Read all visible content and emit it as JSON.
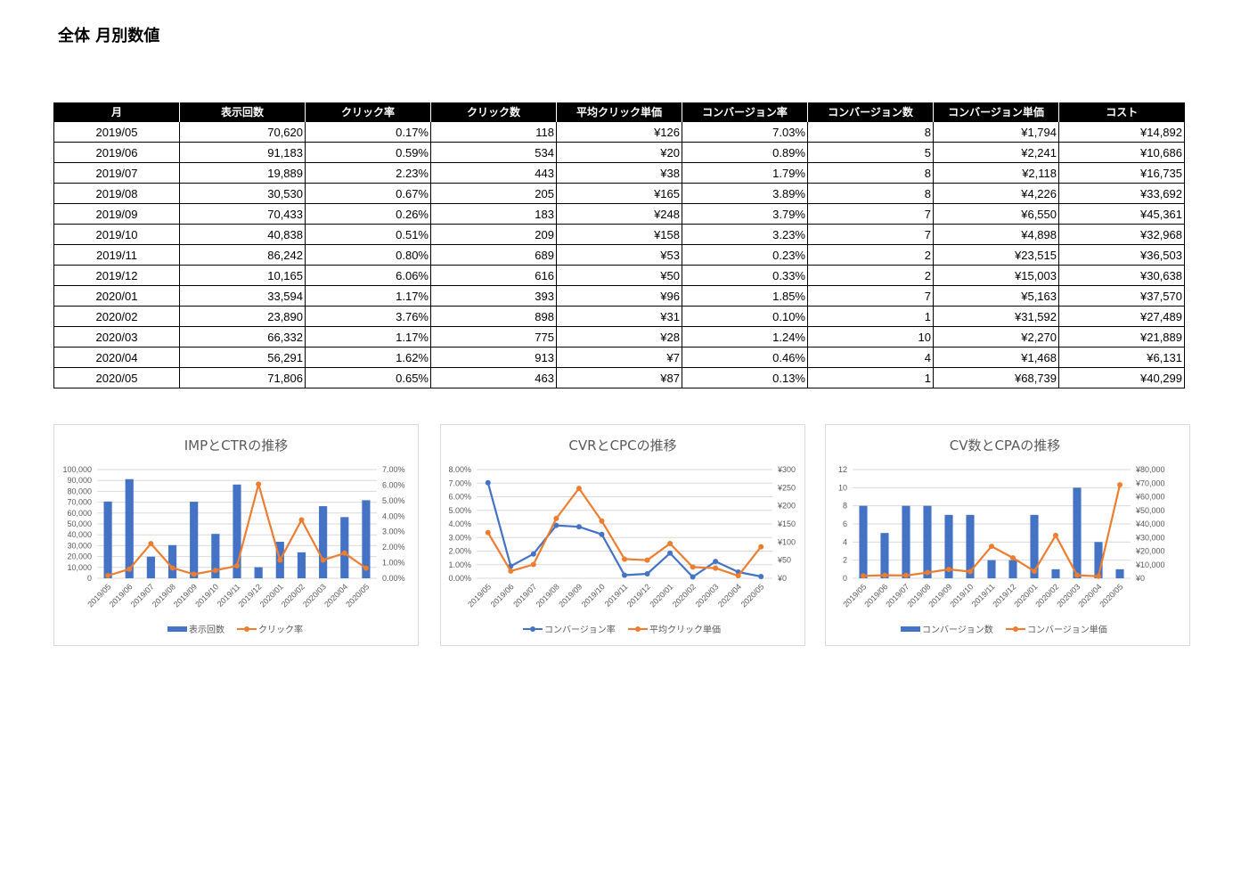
{
  "page_title": "全体 月別数値",
  "table": {
    "headers": [
      "月",
      "表示回数",
      "クリック率",
      "クリック数",
      "平均クリック単価",
      "コンバージョン率",
      "コンバージョン数",
      "コンバージョン単価",
      "コスト"
    ],
    "rows": [
      [
        "2019/05",
        "70,620",
        "0.17%",
        "118",
        "¥126",
        "7.03%",
        "8",
        "¥1,794",
        "¥14,892"
      ],
      [
        "2019/06",
        "91,183",
        "0.59%",
        "534",
        "¥20",
        "0.89%",
        "5",
        "¥2,241",
        "¥10,686"
      ],
      [
        "2019/07",
        "19,889",
        "2.23%",
        "443",
        "¥38",
        "1.79%",
        "8",
        "¥2,118",
        "¥16,735"
      ],
      [
        "2019/08",
        "30,530",
        "0.67%",
        "205",
        "¥165",
        "3.89%",
        "8",
        "¥4,226",
        "¥33,692"
      ],
      [
        "2019/09",
        "70,433",
        "0.26%",
        "183",
        "¥248",
        "3.79%",
        "7",
        "¥6,550",
        "¥45,361"
      ],
      [
        "2019/10",
        "40,838",
        "0.51%",
        "209",
        "¥158",
        "3.23%",
        "7",
        "¥4,898",
        "¥32,968"
      ],
      [
        "2019/11",
        "86,242",
        "0.80%",
        "689",
        "¥53",
        "0.23%",
        "2",
        "¥23,515",
        "¥36,503"
      ],
      [
        "2019/12",
        "10,165",
        "6.06%",
        "616",
        "¥50",
        "0.33%",
        "2",
        "¥15,003",
        "¥30,638"
      ],
      [
        "2020/01",
        "33,594",
        "1.17%",
        "393",
        "¥96",
        "1.85%",
        "7",
        "¥5,163",
        "¥37,570"
      ],
      [
        "2020/02",
        "23,890",
        "3.76%",
        "898",
        "¥31",
        "0.10%",
        "1",
        "¥31,592",
        "¥27,489"
      ],
      [
        "2020/03",
        "66,332",
        "1.17%",
        "775",
        "¥28",
        "1.24%",
        "10",
        "¥2,270",
        "¥21,889"
      ],
      [
        "2020/04",
        "56,291",
        "1.62%",
        "913",
        "¥7",
        "0.46%",
        "4",
        "¥1,468",
        "¥6,131"
      ],
      [
        "2020/05",
        "71,806",
        "0.65%",
        "463",
        "¥87",
        "0.13%",
        "1",
        "¥68,739",
        "¥40,299"
      ]
    ]
  },
  "colors": {
    "bar_blue": "#4472c4",
    "line_orange": "#ed7d31",
    "grid": "#d9d9d9",
    "text": "#595959"
  },
  "chart_data": [
    {
      "type": "bar",
      "title": "IMPとCTRの推移",
      "categories": [
        "2019/05",
        "2019/06",
        "2019/07",
        "2019/08",
        "2019/09",
        "2019/10",
        "2019/11",
        "2019/12",
        "2020/01",
        "2020/02",
        "2020/03",
        "2020/04",
        "2020/05"
      ],
      "left_axis": {
        "kind": "bar",
        "min": 0,
        "max": 100000,
        "step": 10000,
        "format": "comma"
      },
      "right_axis": {
        "kind": "line",
        "min": 0,
        "max": 0.07,
        "step": 0.01,
        "format": "pct"
      },
      "left_series": [
        {
          "name": "表示回数",
          "type": "bar",
          "values": [
            70620,
            91183,
            19889,
            30530,
            70433,
            40838,
            86242,
            10165,
            33594,
            23890,
            66332,
            56291,
            71806
          ]
        }
      ],
      "right_series": [
        {
          "name": "クリック率",
          "type": "line",
          "values": [
            0.0017,
            0.0059,
            0.0223,
            0.0067,
            0.0026,
            0.0051,
            0.008,
            0.0606,
            0.0117,
            0.0376,
            0.0117,
            0.0162,
            0.0065
          ]
        }
      ],
      "legend": "bottom",
      "grid": true
    },
    {
      "type": "line",
      "title": "CVRとCPCの推移",
      "categories": [
        "2019/05",
        "2019/06",
        "2019/07",
        "2019/08",
        "2019/09",
        "2019/10",
        "2019/11",
        "2019/12",
        "2020/01",
        "2020/02",
        "2020/03",
        "2020/04",
        "2020/05"
      ],
      "left_axis": {
        "kind": "line",
        "min": 0,
        "max": 0.08,
        "step": 0.01,
        "format": "pct"
      },
      "right_axis": {
        "kind": "line",
        "min": 0,
        "max": 300,
        "step": 50,
        "format": "yen"
      },
      "left_series": [
        {
          "name": "コンバージョン率",
          "type": "line",
          "values": [
            0.0703,
            0.0089,
            0.0179,
            0.0389,
            0.0379,
            0.0323,
            0.0023,
            0.0033,
            0.0185,
            0.001,
            0.0124,
            0.0046,
            0.0013
          ]
        }
      ],
      "right_series": [
        {
          "name": "平均クリック単価",
          "type": "line",
          "values": [
            126,
            20,
            38,
            165,
            248,
            158,
            53,
            50,
            96,
            31,
            28,
            7,
            87
          ]
        }
      ],
      "legend": "bottom",
      "grid": true
    },
    {
      "type": "bar",
      "title": "CV数とCPAの推移",
      "categories": [
        "2019/05",
        "2019/06",
        "2019/07",
        "2019/08",
        "2019/09",
        "2019/10",
        "2019/11",
        "2019/12",
        "2020/01",
        "2020/02",
        "2020/03",
        "2020/04",
        "2020/05"
      ],
      "left_axis": {
        "kind": "bar",
        "min": 0,
        "max": 12,
        "step": 2,
        "format": "plain"
      },
      "right_axis": {
        "kind": "line",
        "min": 0,
        "max": 80000,
        "step": 10000,
        "format": "yen"
      },
      "left_series": [
        {
          "name": "コンバージョン数",
          "type": "bar",
          "values": [
            8,
            5,
            8,
            8,
            7,
            7,
            2,
            2,
            7,
            1,
            10,
            4,
            1
          ]
        }
      ],
      "right_series": [
        {
          "name": "コンバージョン単価",
          "type": "line",
          "values": [
            1794,
            2241,
            2118,
            4226,
            6550,
            4898,
            23515,
            15003,
            5163,
            31592,
            2270,
            1468,
            68739
          ]
        }
      ],
      "legend": "bottom",
      "grid": true
    }
  ]
}
